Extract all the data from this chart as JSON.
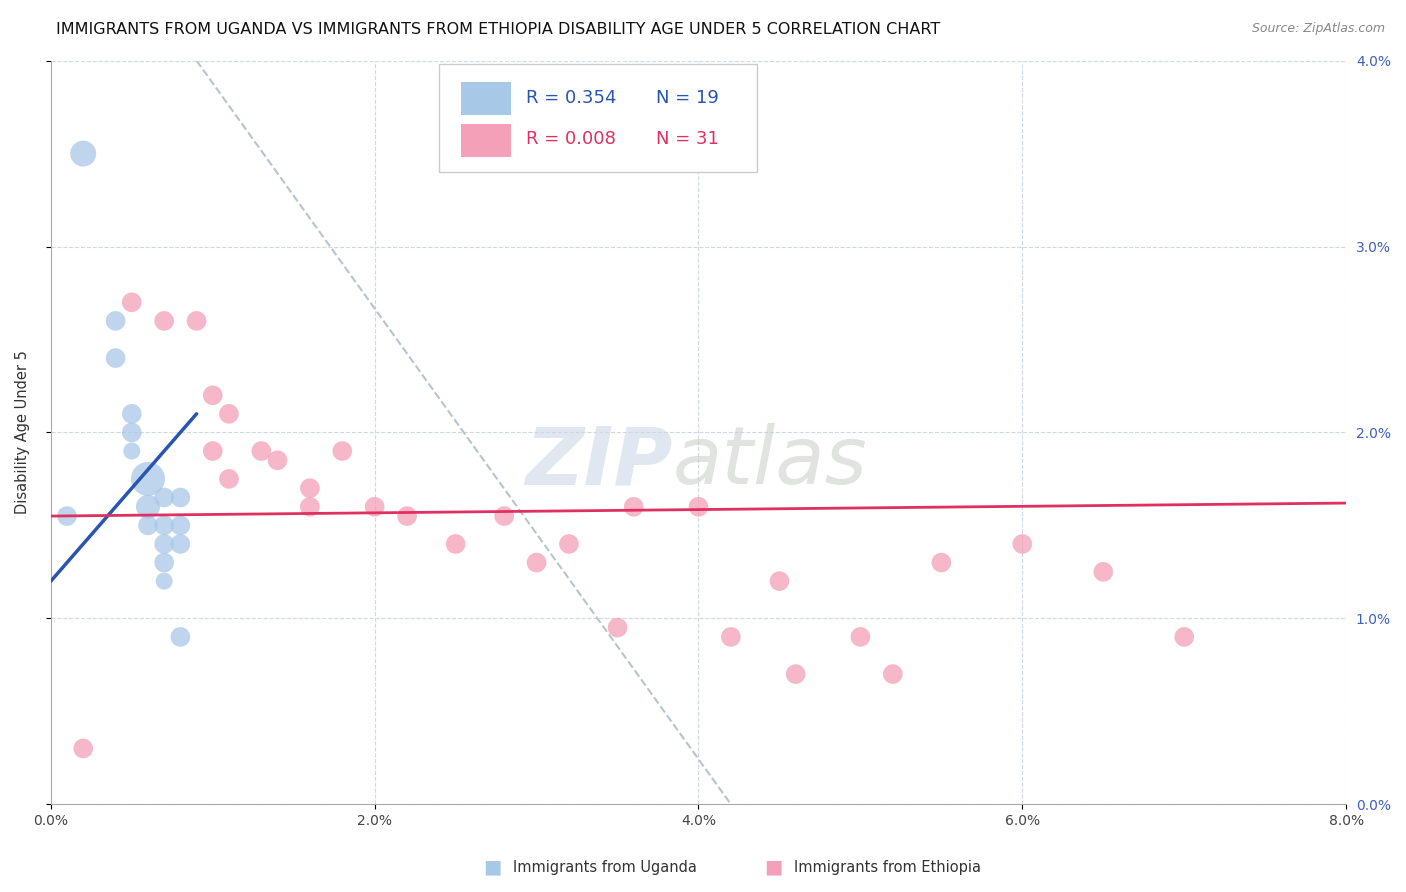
{
  "title": "IMMIGRANTS FROM UGANDA VS IMMIGRANTS FROM ETHIOPIA DISABILITY AGE UNDER 5 CORRELATION CHART",
  "source": "Source: ZipAtlas.com",
  "ylabel": "Disability Age Under 5",
  "right_ytick_labels": [
    "0.0%",
    "1.0%",
    "2.0%",
    "3.0%",
    "4.0%"
  ],
  "right_ytick_values": [
    0.0,
    0.01,
    0.02,
    0.03,
    0.04
  ],
  "xlim": [
    0.0,
    0.08
  ],
  "ylim": [
    0.0,
    0.04
  ],
  "xtick_vals": [
    0.0,
    0.02,
    0.04,
    0.06,
    0.08
  ],
  "xtick_labels": [
    "0.0%",
    "2.0%",
    "4.0%",
    "6.0%",
    "8.0%"
  ],
  "legend_r_uganda": "R = 0.354",
  "legend_n_uganda": "N = 19",
  "legend_r_ethiopia": "R = 0.008",
  "legend_n_ethiopia": "N = 31",
  "uganda_color": "#a8c8e8",
  "ethiopia_color": "#f4a0b8",
  "uganda_line_color": "#2855b0",
  "ethiopia_line_color": "#e03060",
  "dashed_line_color": "#b8c4cc",
  "uganda_points": [
    [
      0.002,
      0.035
    ],
    [
      0.004,
      0.026
    ],
    [
      0.004,
      0.024
    ],
    [
      0.005,
      0.021
    ],
    [
      0.005,
      0.02
    ],
    [
      0.005,
      0.019
    ],
    [
      0.006,
      0.0175
    ],
    [
      0.006,
      0.016
    ],
    [
      0.006,
      0.015
    ],
    [
      0.007,
      0.0165
    ],
    [
      0.007,
      0.015
    ],
    [
      0.007,
      0.014
    ],
    [
      0.007,
      0.013
    ],
    [
      0.007,
      0.012
    ],
    [
      0.008,
      0.0165
    ],
    [
      0.008,
      0.015
    ],
    [
      0.008,
      0.014
    ],
    [
      0.008,
      0.009
    ],
    [
      0.001,
      0.0155
    ]
  ],
  "uganda_sizes": [
    350,
    200,
    200,
    200,
    200,
    150,
    600,
    300,
    200,
    200,
    200,
    200,
    200,
    150,
    200,
    200,
    200,
    200,
    200
  ],
  "ethiopia_points": [
    [
      0.005,
      0.027
    ],
    [
      0.007,
      0.026
    ],
    [
      0.009,
      0.026
    ],
    [
      0.01,
      0.022
    ],
    [
      0.01,
      0.019
    ],
    [
      0.011,
      0.021
    ],
    [
      0.011,
      0.0175
    ],
    [
      0.013,
      0.019
    ],
    [
      0.014,
      0.0185
    ],
    [
      0.016,
      0.017
    ],
    [
      0.016,
      0.016
    ],
    [
      0.018,
      0.019
    ],
    [
      0.02,
      0.016
    ],
    [
      0.022,
      0.0155
    ],
    [
      0.025,
      0.014
    ],
    [
      0.028,
      0.0155
    ],
    [
      0.03,
      0.013
    ],
    [
      0.032,
      0.014
    ],
    [
      0.035,
      0.0095
    ],
    [
      0.036,
      0.016
    ],
    [
      0.04,
      0.016
    ],
    [
      0.042,
      0.009
    ],
    [
      0.045,
      0.012
    ],
    [
      0.046,
      0.007
    ],
    [
      0.05,
      0.009
    ],
    [
      0.052,
      0.007
    ],
    [
      0.055,
      0.013
    ],
    [
      0.06,
      0.014
    ],
    [
      0.065,
      0.0125
    ],
    [
      0.07,
      0.009
    ],
    [
      0.002,
      0.003
    ]
  ],
  "ethiopia_sizes": [
    200,
    200,
    200,
    200,
    200,
    200,
    200,
    200,
    200,
    200,
    200,
    200,
    200,
    200,
    200,
    200,
    200,
    200,
    200,
    200,
    200,
    200,
    200,
    200,
    200,
    200,
    200,
    200,
    200,
    200,
    200
  ],
  "uganda_trendline_x": [
    0.0,
    0.009
  ],
  "uganda_trendline_y": [
    0.012,
    0.021
  ],
  "ethiopia_trendline_x": [
    0.0,
    0.08
  ],
  "ethiopia_trendline_y": [
    0.0155,
    0.0162
  ],
  "dashed_line_x": [
    0.009,
    0.042
  ],
  "dashed_line_y": [
    0.04,
    0.0
  ],
  "grid_color": "#d0d8e0",
  "background_color": "#ffffff",
  "title_fontsize": 11.5,
  "source_fontsize": 9,
  "axis_label_fontsize": 10.5,
  "tick_fontsize": 10,
  "legend_fontsize": 13,
  "watermark_zip_color": "#ccd8e8",
  "watermark_atlas_color": "#c8ccc8"
}
